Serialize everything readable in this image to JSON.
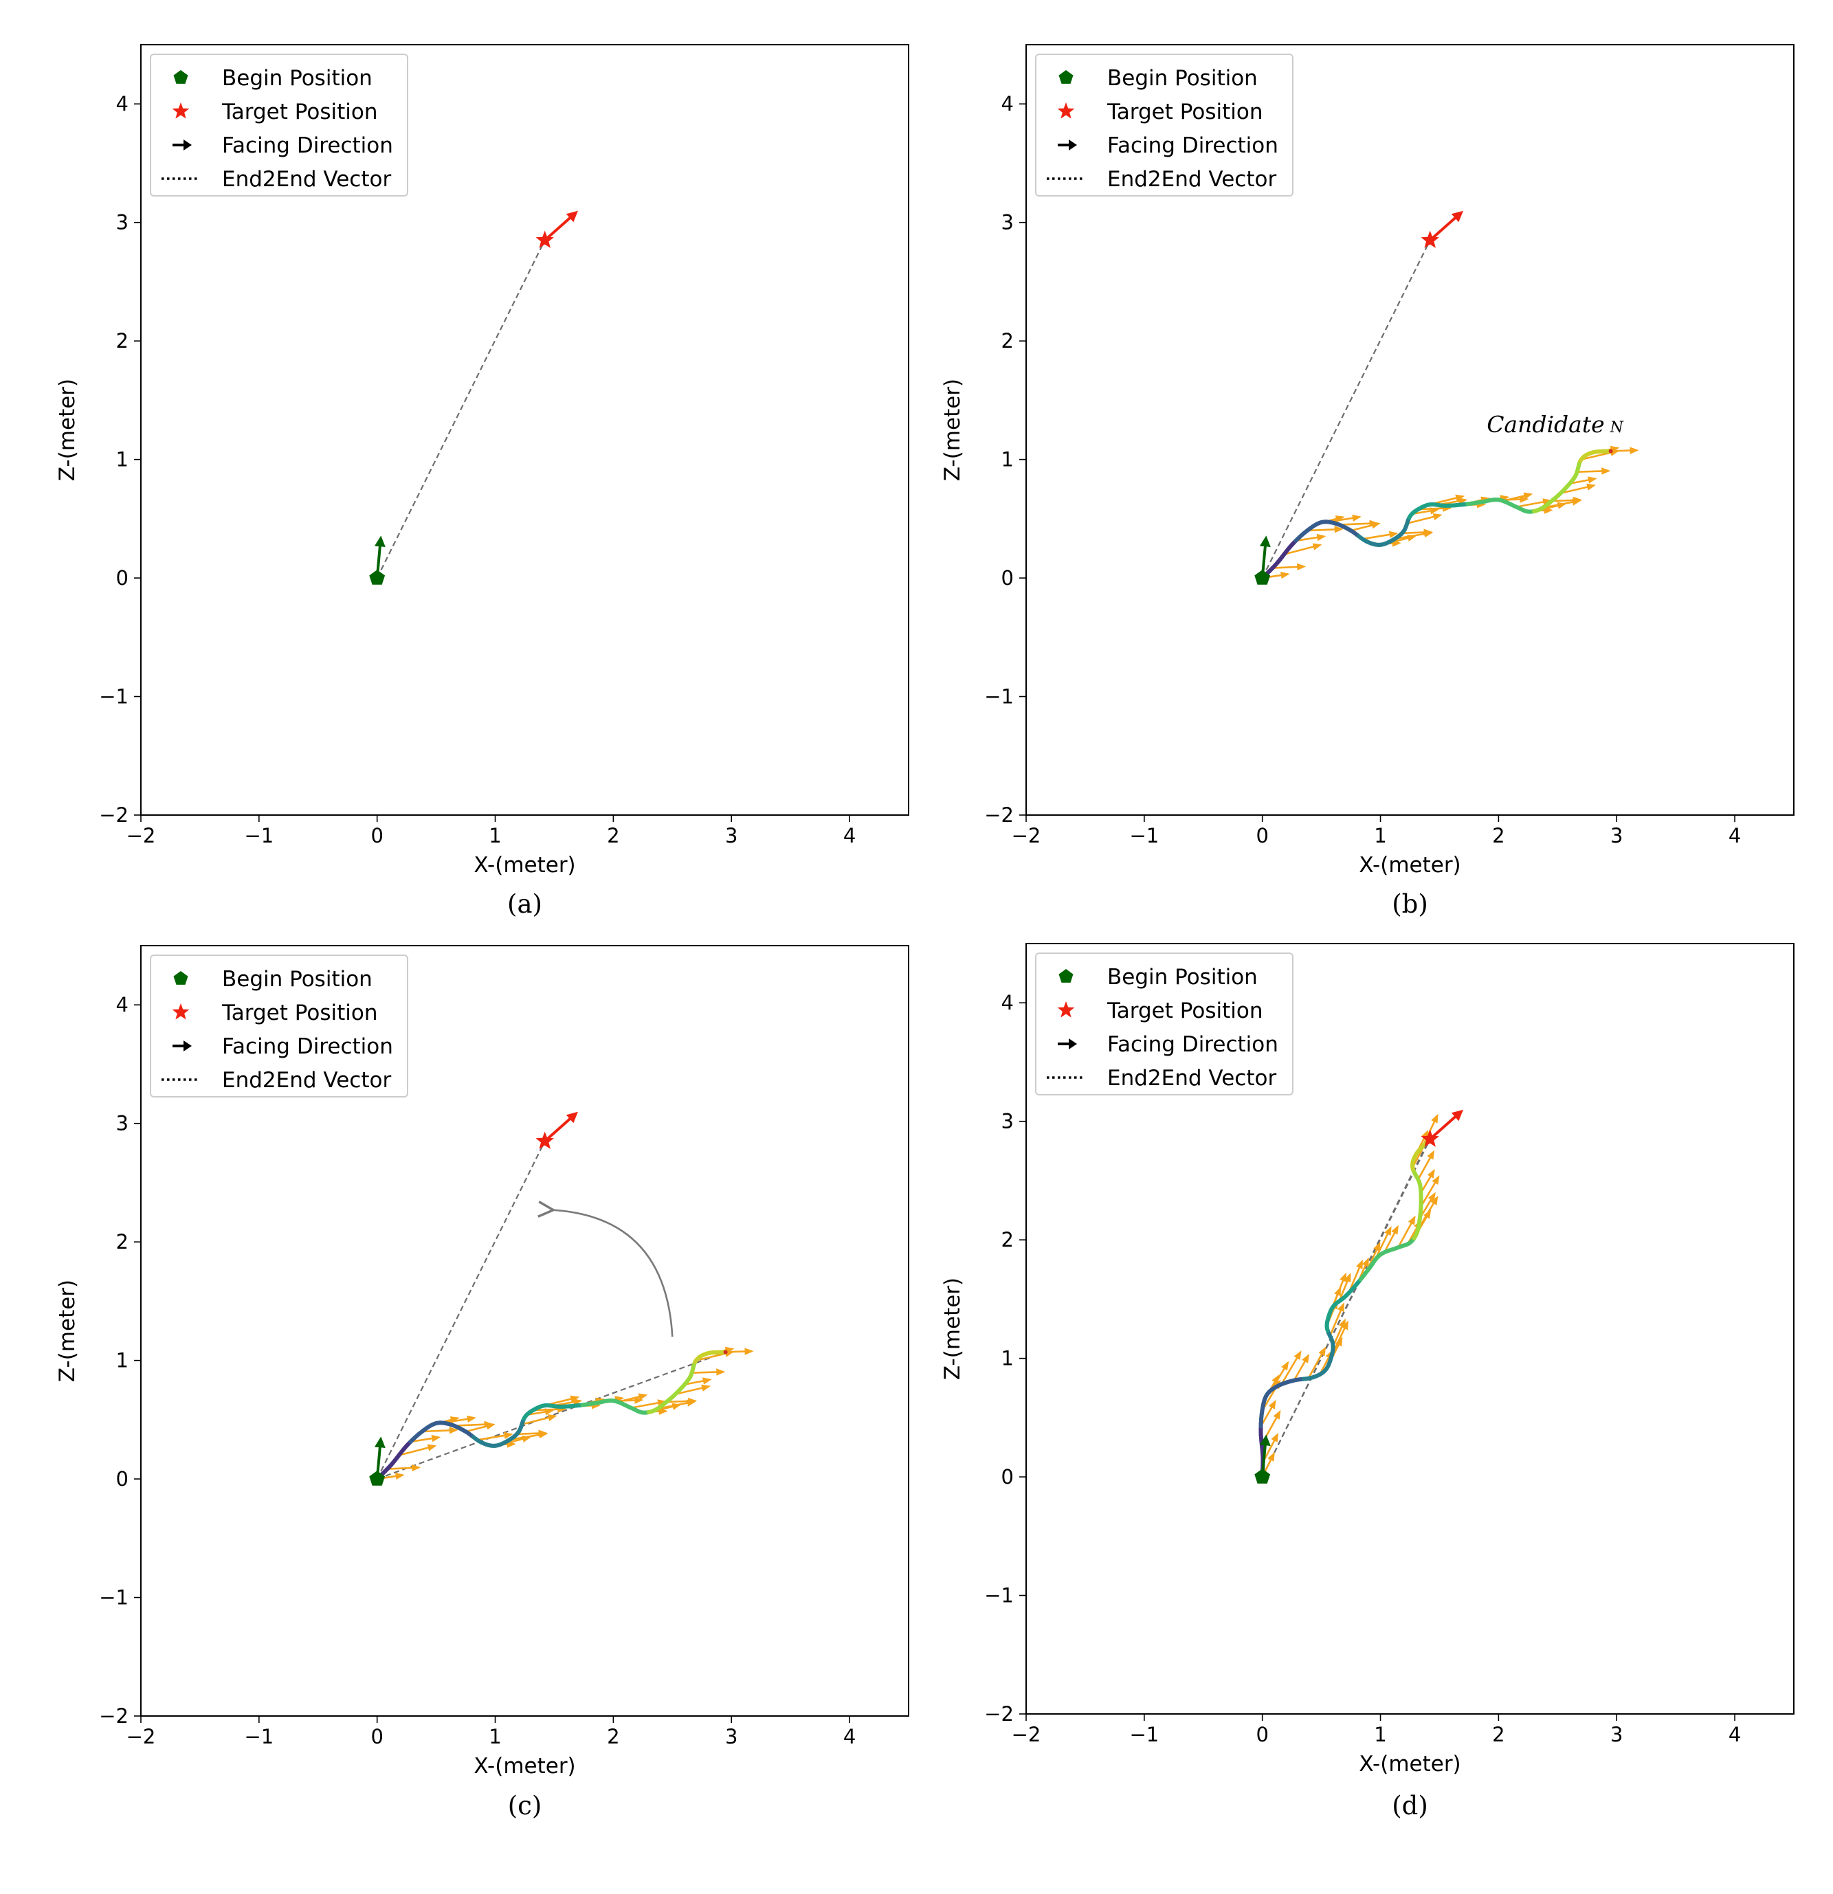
{
  "figure": {
    "panels": [
      {
        "id": "a",
        "caption": "(a)",
        "show_traj": false,
        "show_candidate_label": false,
        "show_rotation": false,
        "show_cand_vector": false
      },
      {
        "id": "b",
        "caption": "(b)",
        "show_traj": true,
        "traj": "horizontal",
        "show_candidate_label": true,
        "show_rotation": false,
        "show_cand_vector": false
      },
      {
        "id": "c",
        "caption": "(c)",
        "show_traj": true,
        "traj": "horizontal",
        "show_candidate_label": false,
        "show_rotation": true,
        "show_cand_vector": true
      },
      {
        "id": "d",
        "caption": "(d)",
        "show_traj": true,
        "traj": "rotated",
        "show_candidate_label": false,
        "show_rotation": false,
        "show_cand_vector": true
      }
    ],
    "candidate_label": "Candidate",
    "candidate_subscript": "N"
  },
  "chart_data": {
    "type": "scatter",
    "xlabel": "X-(meter)",
    "ylabel": "Z-(meter)",
    "xlim": [
      -2,
      4.5
    ],
    "ylim": [
      -2,
      4.5
    ],
    "xticks": [
      -2,
      -1,
      0,
      1,
      2,
      3,
      4
    ],
    "yticks": [
      -2,
      -1,
      0,
      1,
      2,
      3,
      4
    ],
    "tick_labels": [
      "−2",
      "−1",
      "0",
      "1",
      "2",
      "3",
      "4"
    ],
    "legend": {
      "position": "upper-left",
      "entries": [
        "Begin Position",
        "Target Position",
        "Facing Direction",
        "End2End Vector"
      ]
    },
    "begin_position": [
      0,
      0
    ],
    "begin_facing": [
      0.03,
      0.33
    ],
    "target_position": [
      1.42,
      2.85
    ],
    "target_facing": [
      1.68,
      3.08
    ],
    "trajectory_horizontal": [
      [
        0,
        0
      ],
      [
        0.12,
        0.12
      ],
      [
        0.25,
        0.28
      ],
      [
        0.38,
        0.4
      ],
      [
        0.5,
        0.47
      ],
      [
        0.62,
        0.46
      ],
      [
        0.75,
        0.4
      ],
      [
        0.88,
        0.31
      ],
      [
        1.0,
        0.28
      ],
      [
        1.12,
        0.33
      ],
      [
        1.2,
        0.4
      ],
      [
        1.25,
        0.52
      ],
      [
        1.32,
        0.58
      ],
      [
        1.42,
        0.62
      ],
      [
        1.55,
        0.61
      ],
      [
        1.7,
        0.62
      ],
      [
        1.85,
        0.64
      ],
      [
        2.0,
        0.66
      ],
      [
        2.15,
        0.6
      ],
      [
        2.25,
        0.56
      ],
      [
        2.35,
        0.58
      ],
      [
        2.45,
        0.65
      ],
      [
        2.55,
        0.74
      ],
      [
        2.65,
        0.86
      ],
      [
        2.7,
        1.0
      ],
      [
        2.8,
        1.06
      ],
      [
        2.95,
        1.07
      ]
    ],
    "candidate_end": [
      2.97,
      1.07
    ],
    "rotation_arrow": {
      "from": [
        2.5,
        1.2
      ],
      "to": [
        1.48,
        2.27
      ]
    },
    "colorscale": [
      "#46327e",
      "#365c8d",
      "#277f8e",
      "#1fa187",
      "#4ac16d",
      "#a0da39",
      "#c8d12a"
    ]
  }
}
